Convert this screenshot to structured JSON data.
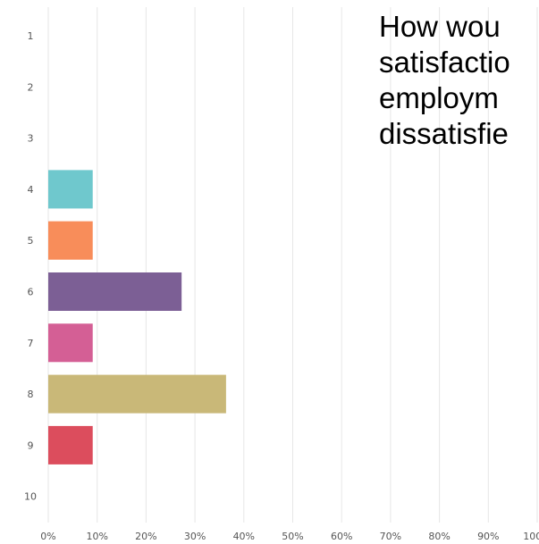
{
  "chart_data": {
    "type": "bar",
    "orientation": "horizontal",
    "title": "How wou\nsatisfactio\nemploym\ndissatisfie",
    "categories": [
      "1",
      "2",
      "3",
      "4",
      "5",
      "6",
      "7",
      "8",
      "9",
      "10"
    ],
    "values": [
      0,
      0,
      0,
      9.09,
      9.09,
      27.27,
      9.09,
      36.36,
      9.09,
      0
    ],
    "colors": [
      "#6fc8cd",
      "#6fc8cd",
      "#6fc8cd",
      "#6fc8cd",
      "#f88d5a",
      "#7c5f95",
      "#d45f95",
      "#c9b878",
      "#dc4d5d",
      "#dc4d5d"
    ],
    "xlim": [
      0,
      100
    ],
    "xticks": [
      "0%",
      "10%",
      "20%",
      "30%",
      "40%",
      "50%",
      "60%",
      "70%",
      "80%",
      "90%",
      "100%"
    ],
    "grid": true,
    "legend": "none"
  }
}
